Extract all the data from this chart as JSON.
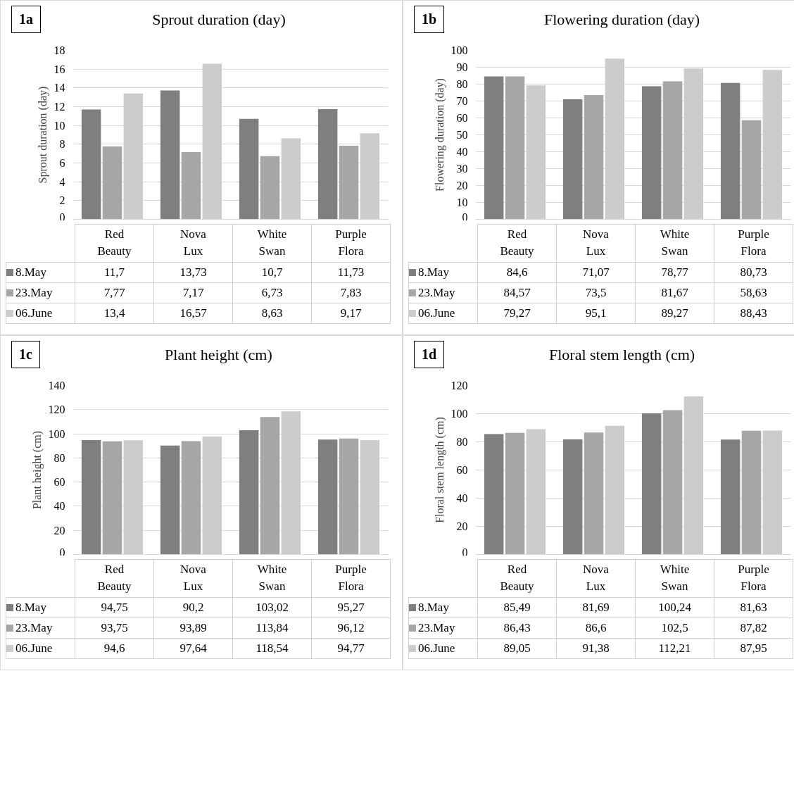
{
  "chart_data": [
    {
      "type": "bar",
      "title": "Sprout duration (day)",
      "ylabel": "Sprout duration (day)",
      "annotations": [
        "1a"
      ],
      "categories": [
        "Red Beauty",
        "Nova Lux",
        "White Swan",
        "Purple Flora"
      ],
      "ylim": [
        0,
        18
      ],
      "yticks": [
        0,
        2,
        4,
        6,
        8,
        10,
        12,
        14,
        16,
        18
      ],
      "grid": "y",
      "legend": "bottom",
      "tick_labels": "y",
      "series": [
        {
          "name": "8.May",
          "color": "#7f7f7f",
          "values": [
            11.7,
            13.73,
            10.7,
            11.73
          ],
          "value_labels": [
            "11,7",
            "13,73",
            "10,7",
            "11,73"
          ]
        },
        {
          "name": "23.May",
          "color": "#a6a6a6",
          "values": [
            7.77,
            7.17,
            6.73,
            7.83
          ],
          "value_labels": [
            "7,77",
            "7,17",
            "6,73",
            "7,83"
          ]
        },
        {
          "name": "06.June",
          "color": "#cccccc",
          "values": [
            13.4,
            16.57,
            8.63,
            9.17
          ],
          "value_labels": [
            "13,4",
            "16,57",
            "8,63",
            "9,17"
          ]
        }
      ]
    },
    {
      "type": "bar",
      "title": "Flowering duration (day)",
      "ylabel": "Flowering duration (day)",
      "annotations": [
        "1b"
      ],
      "categories": [
        "Red Beauty",
        "Nova Lux",
        "White Swan",
        "Purple Flora"
      ],
      "ylim": [
        0,
        100
      ],
      "yticks": [
        0,
        10,
        20,
        30,
        40,
        50,
        60,
        70,
        80,
        90,
        100
      ],
      "grid": "y",
      "legend": "bottom",
      "tick_labels": "y",
      "series": [
        {
          "name": "8.May",
          "color": "#7f7f7f",
          "values": [
            84.6,
            71.07,
            78.77,
            80.73
          ],
          "value_labels": [
            "84,6",
            "71,07",
            "78,77",
            "80,73"
          ]
        },
        {
          "name": "23.May",
          "color": "#a6a6a6",
          "values": [
            84.57,
            73.5,
            81.67,
            58.63
          ],
          "value_labels": [
            "84,57",
            "73,5",
            "81,67",
            "58,63"
          ]
        },
        {
          "name": "06.June",
          "color": "#cccccc",
          "values": [
            79.27,
            95.1,
            89.27,
            88.43
          ],
          "value_labels": [
            "79,27",
            "95,1",
            "89,27",
            "88,43"
          ]
        }
      ]
    },
    {
      "type": "bar",
      "title": "Plant height (cm)",
      "ylabel": "Plant height (cm)",
      "annotations": [
        "1c"
      ],
      "categories": [
        "Red Beauty",
        "Nova Lux",
        "White Swan",
        "Purple Flora"
      ],
      "ylim": [
        0,
        140
      ],
      "yticks": [
        0,
        20,
        40,
        60,
        80,
        100,
        120,
        140
      ],
      "grid": "y",
      "legend": "bottom",
      "tick_labels": "y",
      "series": [
        {
          "name": "8.May",
          "color": "#7f7f7f",
          "values": [
            94.75,
            90.2,
            103.02,
            95.27
          ],
          "value_labels": [
            "94,75",
            "90,2",
            "103,02",
            "95,27"
          ]
        },
        {
          "name": "23.May",
          "color": "#a6a6a6",
          "values": [
            93.75,
            93.89,
            113.84,
            96.12
          ],
          "value_labels": [
            "93,75",
            "93,89",
            "113,84",
            "96,12"
          ]
        },
        {
          "name": "06.June",
          "color": "#cccccc",
          "values": [
            94.6,
            97.64,
            118.54,
            94.77
          ],
          "value_labels": [
            "94,6",
            "97,64",
            "118,54",
            "94,77"
          ]
        }
      ]
    },
    {
      "type": "bar",
      "title": "Floral stem length (cm)",
      "ylabel": "Floral stem length (cm)",
      "annotations": [
        "1d"
      ],
      "categories": [
        "Red Beauty",
        "Nova Lux",
        "White Swan",
        "Purple Flora"
      ],
      "ylim": [
        0,
        120
      ],
      "yticks": [
        0,
        20,
        40,
        60,
        80,
        100,
        120
      ],
      "grid": "y",
      "legend": "bottom",
      "tick_labels": "y",
      "series": [
        {
          "name": "8.May",
          "color": "#7f7f7f",
          "values": [
            85.49,
            81.69,
            100.24,
            81.63
          ],
          "value_labels": [
            "85,49",
            "81,69",
            "100,24",
            "81,63"
          ]
        },
        {
          "name": "23.May",
          "color": "#a6a6a6",
          "values": [
            86.43,
            86.6,
            102.5,
            87.82
          ],
          "value_labels": [
            "86,43",
            "86,6",
            "102,5",
            "87,82"
          ]
        },
        {
          "name": "06.June",
          "color": "#cccccc",
          "values": [
            89.05,
            91.38,
            112.21,
            87.95
          ],
          "value_labels": [
            "89,05",
            "91,38",
            "112,21",
            "87,95"
          ]
        }
      ]
    }
  ]
}
